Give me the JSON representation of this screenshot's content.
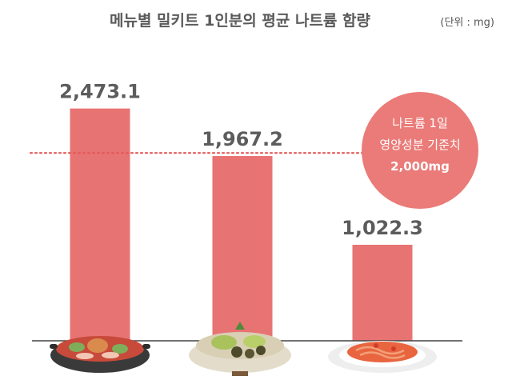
{
  "chart_data": {
    "type": "bar",
    "title": "메뉴별 밀키트 1인분의 평균 나트륨 함량",
    "unit_label": "(단위 : mg)",
    "categories": [
      "",
      "",
      ""
    ],
    "values": [
      2473.1,
      1967.2,
      1022.3
    ],
    "value_labels": [
      "2,473.1",
      "1,967.2",
      "1,022.3"
    ],
    "ylim": [
      0,
      2700
    ],
    "grid": false,
    "reference_line": {
      "value": 2000,
      "text_lines": [
        "나트륨 1일",
        "영양성분 기준치",
        "2,000mg"
      ]
    },
    "category_icons": [
      "stew-pot-icon",
      "hotpot-icon",
      "pasta-plate-icon"
    ]
  },
  "colors": {
    "bar": "#e87373",
    "reference_line": "#e45a5a",
    "reference_bubble": "#ea7b78",
    "baseline": "#444444",
    "title": "#5a5a5a",
    "value_label": "#5c5c5c"
  }
}
